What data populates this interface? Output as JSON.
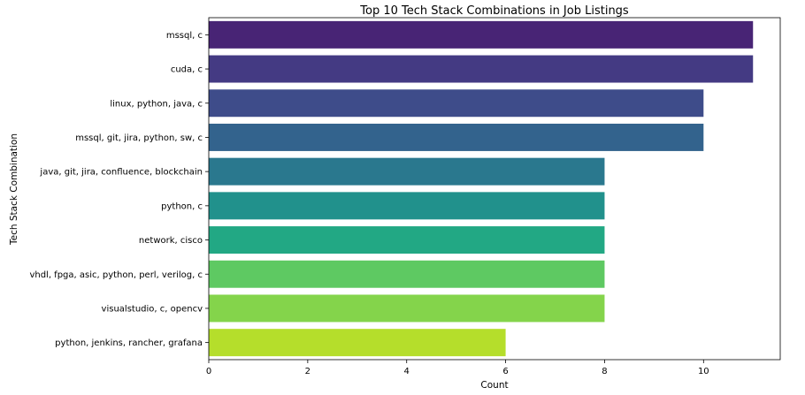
{
  "chart_data": {
    "type": "bar",
    "orientation": "horizontal",
    "title": "Top 10 Tech Stack Combinations in Job Listings",
    "xlabel": "Count",
    "ylabel": "Tech Stack Combination",
    "categories": [
      "mssql, c",
      "cuda, c",
      "linux, python, java, c",
      "mssql, git, jira, python, sw, c",
      "java, git, jira, confluence, blockchain",
      "python, c",
      "network, cisco",
      "vhdl, fpga, asic, python, perl, verilog, c",
      "visualstudio, c, opencv",
      "python, jenkins, rancher, grafana"
    ],
    "values": [
      11,
      11,
      10,
      10,
      8,
      8,
      8,
      8,
      8,
      6
    ],
    "colors": [
      "#482475",
      "#443a83",
      "#3e4c8a",
      "#33638d",
      "#2a788e",
      "#21918c",
      "#22a884",
      "#5ec962",
      "#84d44b",
      "#b5de2b"
    ],
    "xlim": [
      0,
      11.55
    ],
    "xticks": [
      0,
      2,
      4,
      6,
      8,
      10
    ],
    "grid": false,
    "legend": "none"
  }
}
